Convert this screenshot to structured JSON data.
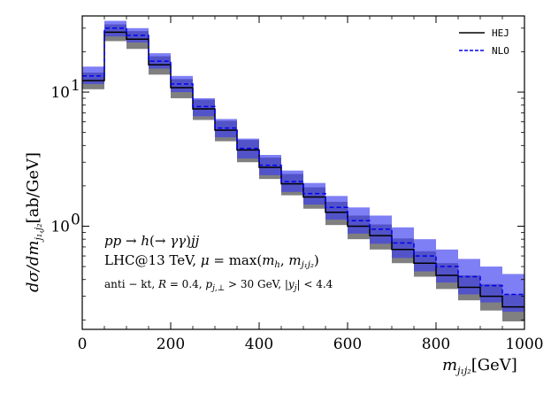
{
  "chart_data": {
    "type": "step-histogram",
    "xlabel": "m_{j1j2}[GeV]",
    "ylabel": "dσ/dm_{j1j2}[ab/GeV]",
    "yscale": "log",
    "xlim": [
      0,
      1000
    ],
    "ylim": [
      0.17,
      37
    ],
    "x_ticks": [
      0,
      200,
      400,
      600,
      800,
      1000
    ],
    "x_tick_labels": [
      "0",
      "200",
      "400",
      "600",
      "800",
      "1000"
    ],
    "y_tick_labels": [
      {
        "value": 1,
        "base": "10",
        "exp": "0"
      },
      {
        "value": 10,
        "base": "10",
        "exp": "1"
      }
    ],
    "bin_edges": [
      0,
      50,
      100,
      150,
      200,
      250,
      300,
      350,
      400,
      450,
      500,
      550,
      600,
      650,
      700,
      750,
      800,
      850,
      900,
      950,
      1000
    ],
    "series": [
      {
        "name": "HEJ",
        "style": "solid",
        "color": "#000000",
        "band_color": "#555555",
        "values": [
          12.2,
          28.0,
          24.8,
          16.0,
          10.8,
          7.5,
          5.2,
          3.7,
          2.75,
          2.07,
          1.65,
          1.27,
          1.0,
          0.85,
          0.67,
          0.53,
          0.43,
          0.35,
          0.3,
          0.25
        ],
        "band_low": [
          10.5,
          24.0,
          21.0,
          13.5,
          9.0,
          6.2,
          4.3,
          3.0,
          2.25,
          1.7,
          1.35,
          1.02,
          0.8,
          0.67,
          0.53,
          0.42,
          0.34,
          0.28,
          0.235,
          0.195
        ],
        "band_high": [
          14.0,
          32.0,
          28.5,
          18.5,
          12.5,
          8.8,
          6.1,
          4.4,
          3.25,
          2.45,
          1.95,
          1.52,
          1.2,
          1.03,
          0.81,
          0.65,
          0.53,
          0.43,
          0.37,
          0.31
        ]
      },
      {
        "name": "NLO",
        "style": "dashed",
        "color": "#0000ee",
        "band_color": "#3a3af0",
        "values": [
          13.2,
          30.0,
          26.5,
          17.0,
          11.5,
          7.8,
          5.4,
          3.8,
          2.85,
          2.15,
          1.75,
          1.38,
          1.1,
          0.95,
          0.75,
          0.6,
          0.5,
          0.42,
          0.36,
          0.31
        ],
        "band_low": [
          11.5,
          26.0,
          23.5,
          15.0,
          10.0,
          6.6,
          4.6,
          3.2,
          2.4,
          1.8,
          1.45,
          1.12,
          0.88,
          0.74,
          0.58,
          0.46,
          0.38,
          0.31,
          0.27,
          0.23
        ],
        "band_high": [
          15.5,
          34.0,
          30.0,
          19.5,
          13.2,
          9.0,
          6.3,
          4.5,
          3.4,
          2.6,
          2.1,
          1.68,
          1.38,
          1.2,
          0.98,
          0.8,
          0.67,
          0.57,
          0.5,
          0.44
        ]
      }
    ],
    "legend_position": "top-right",
    "annotations": [
      "pp → h(→ γγ)jj",
      "LHC@13 TeV, μ = max(m_h, m_{j1j2})",
      "anti − kt, R = 0.4, p_{j,⊥} > 30 GeV, |y_j| < 4.4"
    ]
  }
}
